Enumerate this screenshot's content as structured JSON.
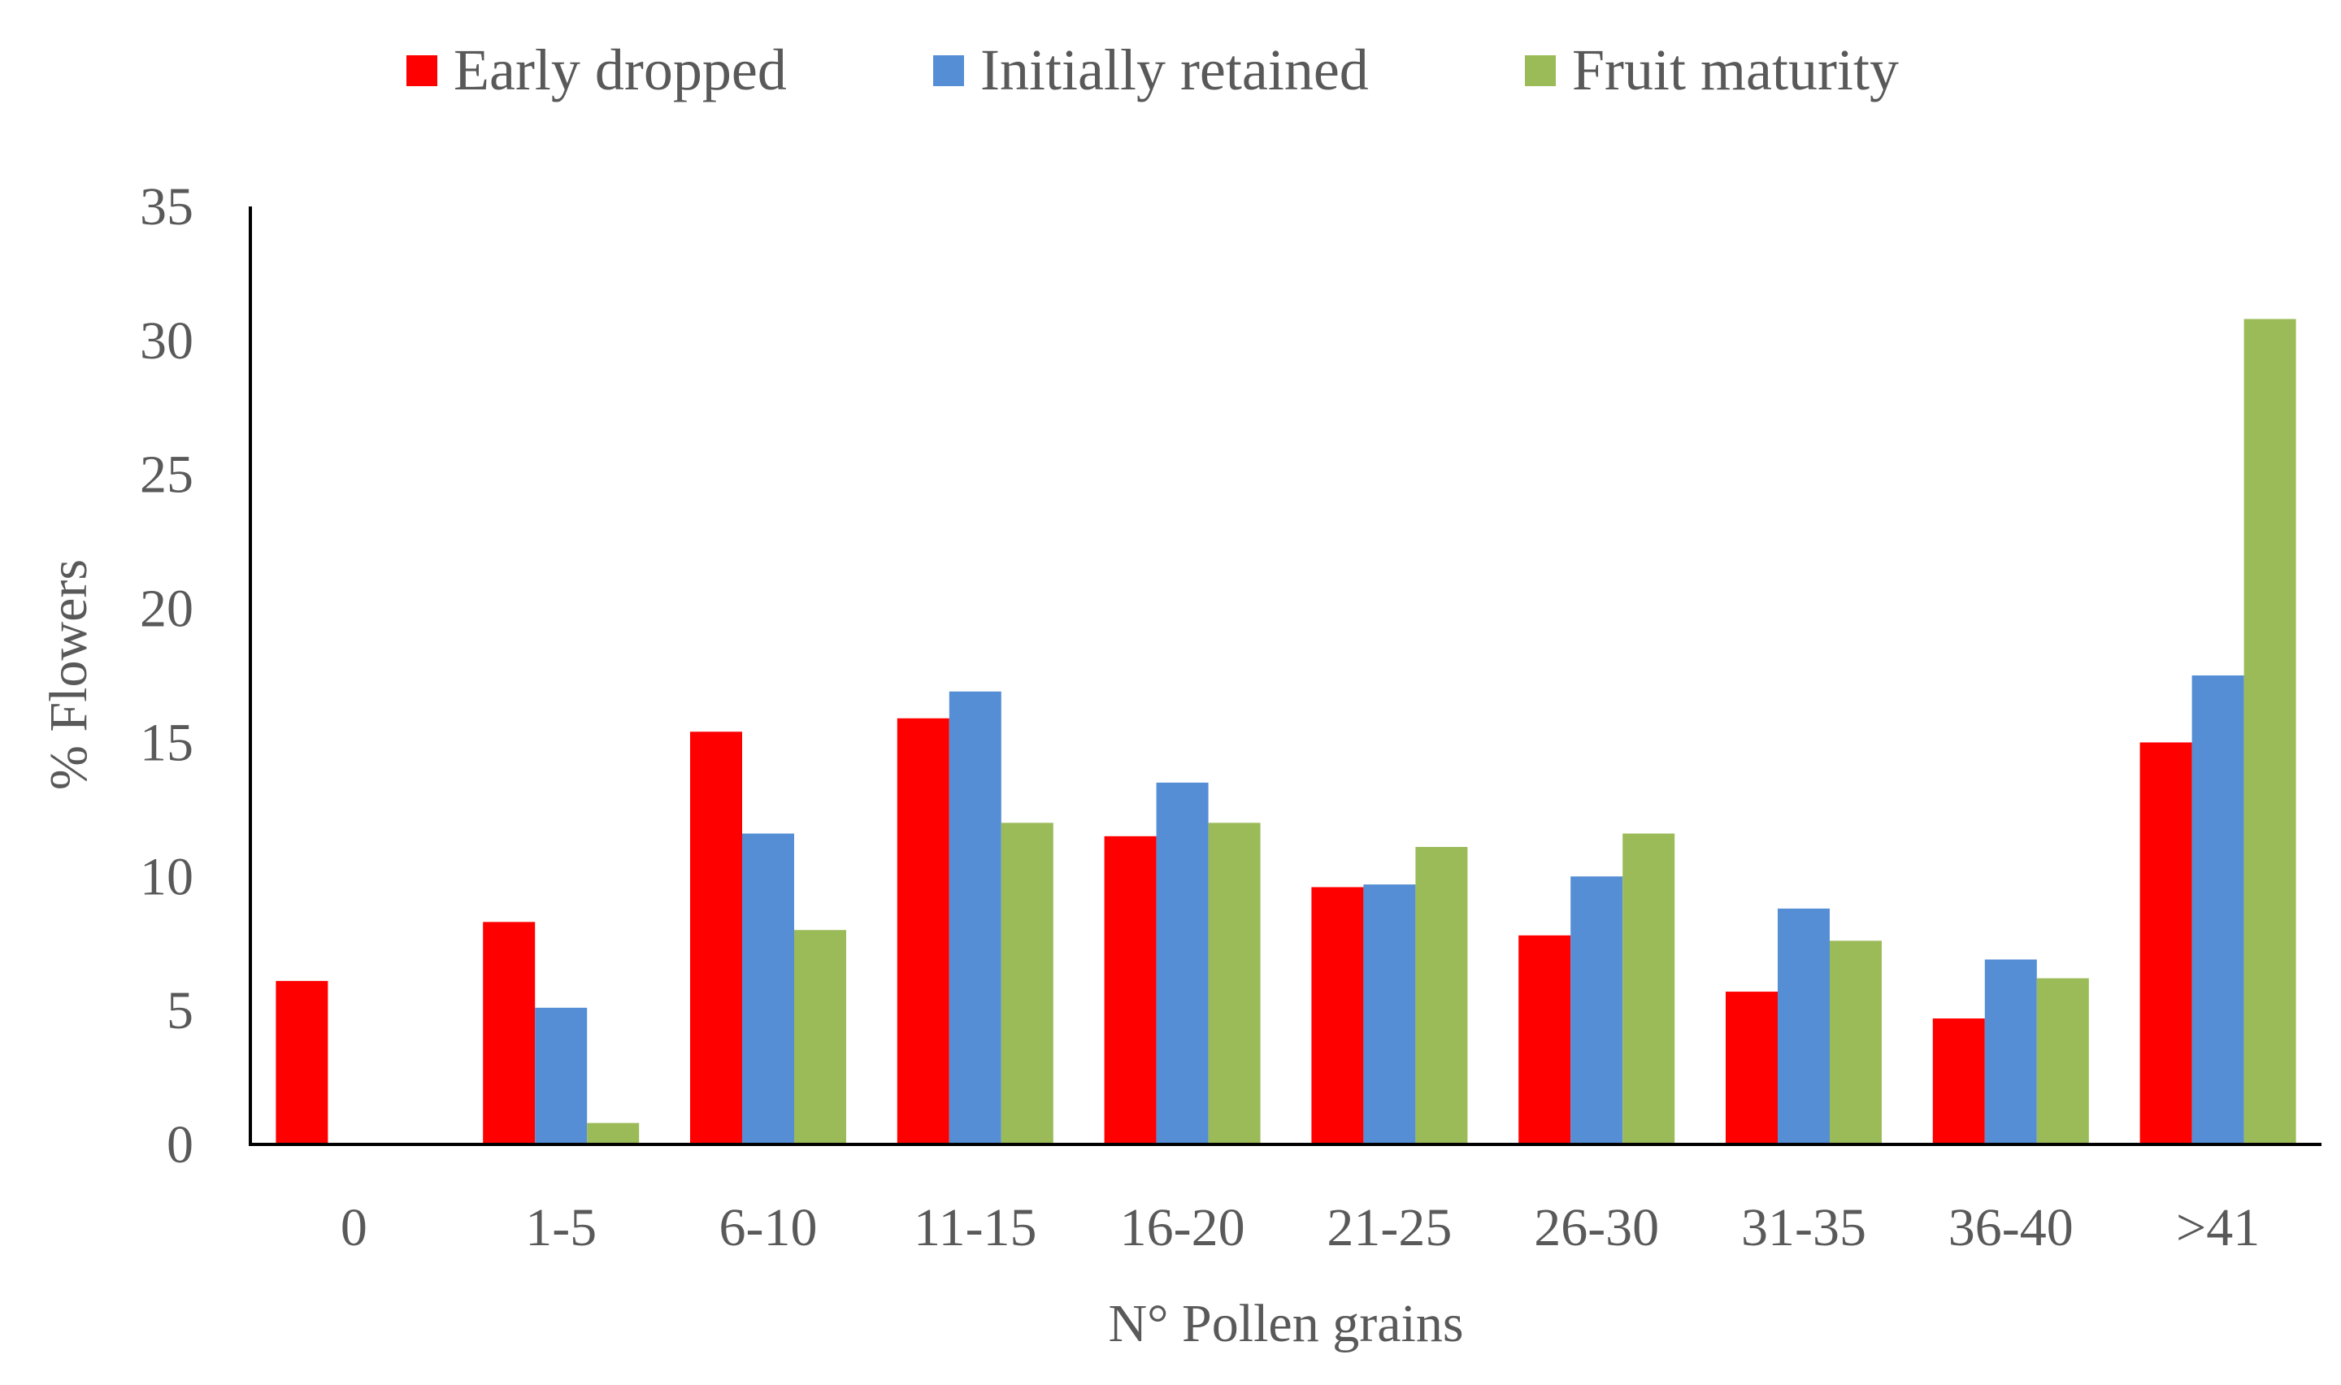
{
  "chart_data": {
    "type": "bar",
    "title": "",
    "xlabel": "N° Pollen grains",
    "ylabel": "% Flowers",
    "categories": [
      "0",
      "1-5",
      "6-10",
      "11-15",
      "16-20",
      "21-25",
      "26-30",
      "31-35",
      "36-40",
      ">41"
    ],
    "ylim": [
      0,
      35
    ],
    "yticks": [
      "0",
      "5",
      "10",
      "15",
      "20",
      "25",
      "30",
      "35"
    ],
    "grid": false,
    "legend_position": "top-center",
    "series": [
      {
        "name": "Early dropped",
        "color": "#ff0000",
        "values": [
          6.1,
          8.3,
          15.4,
          15.9,
          11.5,
          9.6,
          7.8,
          5.7,
          4.7,
          15.0
        ]
      },
      {
        "name": "Initially retained",
        "color": "#558ed5",
        "values": [
          0,
          5.1,
          11.6,
          16.9,
          13.5,
          9.7,
          10.0,
          8.8,
          6.9,
          17.5
        ]
      },
      {
        "name": "Fruit maturity",
        "color": "#9bbb59",
        "values": [
          0,
          0.8,
          8.0,
          12.0,
          12.0,
          11.1,
          11.6,
          7.6,
          6.2,
          30.8
        ]
      }
    ]
  }
}
